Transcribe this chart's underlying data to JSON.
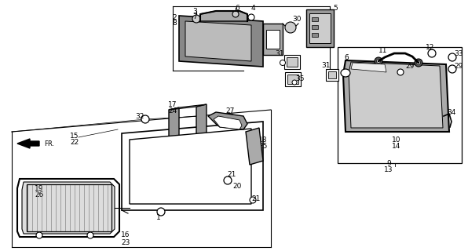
{
  "bg_color": "#ffffff",
  "line_color": "#000000",
  "gray_dark": "#666666",
  "gray_med": "#999999",
  "gray_light": "#cccccc",
  "figsize": [
    5.96,
    3.2
  ],
  "dpi": 100
}
